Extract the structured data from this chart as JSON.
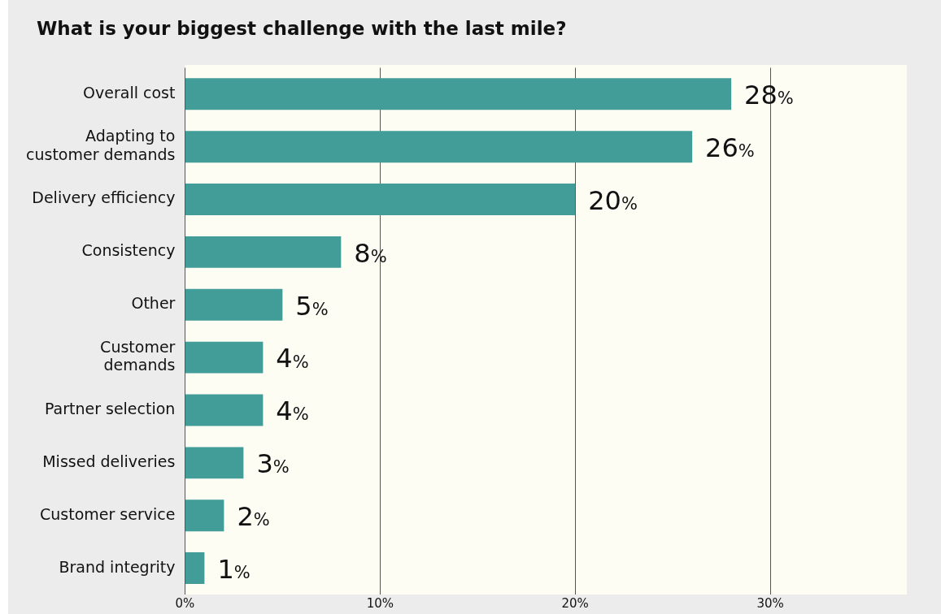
{
  "chart_data": {
    "type": "bar",
    "orientation": "horizontal",
    "title": "What is your biggest challenge with the last mile?",
    "categories": [
      "Overall cost",
      "Adapting to customer demands",
      "Delivery efficiency",
      "Consistency",
      "Other",
      "Customer demands",
      "Partner selection",
      "Missed deliveries",
      "Customer service",
      "Brand integrity"
    ],
    "values": [
      28,
      26,
      20,
      8,
      5,
      4,
      4,
      3,
      2,
      1
    ],
    "value_labels": [
      "28%",
      "26%",
      "20%",
      "8%",
      "5%",
      "4%",
      "4%",
      "3%",
      "2%",
      "1%"
    ],
    "color": "#429c98",
    "xlim": [
      0,
      37
    ],
    "xticks": [
      {
        "value": 0,
        "label": "0%"
      },
      {
        "value": 10,
        "label": "10%"
      },
      {
        "value": 20,
        "label": "20%"
      },
      {
        "value": 30,
        "label": "30%"
      }
    ],
    "grid": "x",
    "legend": false
  }
}
